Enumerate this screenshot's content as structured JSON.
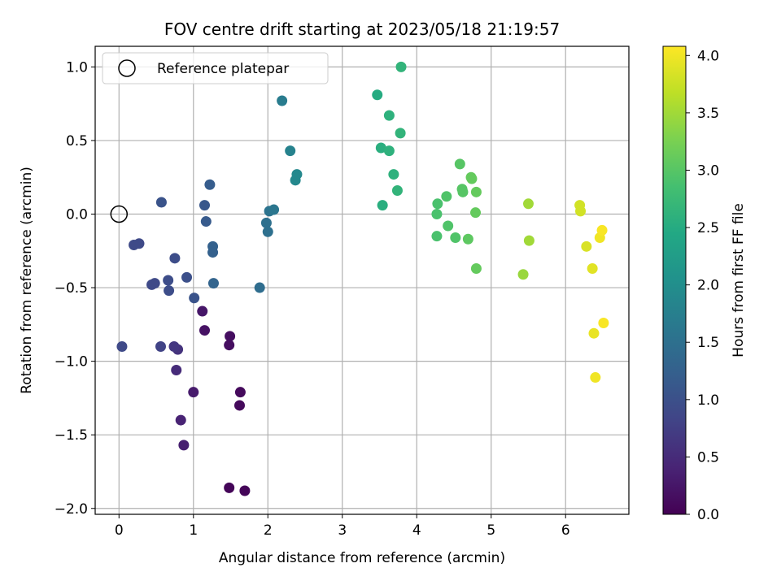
{
  "chart_data": {
    "type": "scatter",
    "title": "FOV centre drift starting at 2023/05/18 21:19:57",
    "xlabel": "Angular distance from reference (arcmin)",
    "ylabel": "Rotation from reference (arcmin)",
    "xlim": [
      -0.32,
      6.85
    ],
    "ylim": [
      -2.04,
      1.14
    ],
    "xticks": [
      0,
      1,
      2,
      3,
      4,
      5,
      6
    ],
    "xtick_labels": [
      "0",
      "1",
      "2",
      "3",
      "4",
      "5",
      "6"
    ],
    "yticks": [
      1.0,
      0.5,
      0.0,
      -0.5,
      -1.0,
      -1.5,
      -2.0
    ],
    "ytick_labels": [
      "1.0",
      "0.5",
      "0.0",
      "−0.5",
      "−1.0",
      "−1.5",
      "−2.0"
    ],
    "grid": true,
    "legend": {
      "position": "top-left",
      "entries": [
        "Reference platepar"
      ]
    },
    "reference_point": {
      "x": 0.0,
      "y": 0.0
    },
    "colorbar": {
      "label": "Hours from first FF file",
      "range": [
        0.0,
        4.08
      ],
      "ticks": [
        0.0,
        0.5,
        1.0,
        1.5,
        2.0,
        2.5,
        3.0,
        3.5,
        4.0
      ],
      "tick_labels": [
        "0.0",
        "0.5",
        "1.0",
        "1.5",
        "2.0",
        "2.5",
        "3.0",
        "3.5",
        "4.0"
      ],
      "colormap": "viridis"
    },
    "points": [
      {
        "x": 1.48,
        "y": -1.86,
        "c": 0.05
      },
      {
        "x": 1.69,
        "y": -1.88,
        "c": 0.05
      },
      {
        "x": 1.62,
        "y": -1.3,
        "c": 0.1
      },
      {
        "x": 1.63,
        "y": -1.21,
        "c": 0.1
      },
      {
        "x": 1.48,
        "y": -0.89,
        "c": 0.15
      },
      {
        "x": 1.49,
        "y": -0.83,
        "c": 0.15
      },
      {
        "x": 1.15,
        "y": -0.79,
        "c": 0.2
      },
      {
        "x": 1.12,
        "y": -0.66,
        "c": 0.25
      },
      {
        "x": 1.0,
        "y": -1.21,
        "c": 0.3
      },
      {
        "x": 0.87,
        "y": -1.57,
        "c": 0.35
      },
      {
        "x": 0.83,
        "y": -1.4,
        "c": 0.4
      },
      {
        "x": 0.77,
        "y": -1.06,
        "c": 0.5
      },
      {
        "x": 0.79,
        "y": -0.92,
        "c": 0.6
      },
      {
        "x": 0.74,
        "y": -0.9,
        "c": 0.65
      },
      {
        "x": 0.56,
        "y": -0.9,
        "c": 0.8
      },
      {
        "x": 0.04,
        "y": -0.9,
        "c": 0.9
      },
      {
        "x": 0.2,
        "y": -0.21,
        "c": 0.9
      },
      {
        "x": 0.27,
        "y": -0.2,
        "c": 0.9
      },
      {
        "x": 0.44,
        "y": -0.48,
        "c": 0.9
      },
      {
        "x": 0.48,
        "y": -0.47,
        "c": 0.9
      },
      {
        "x": 0.66,
        "y": -0.45,
        "c": 0.95
      },
      {
        "x": 0.67,
        "y": -0.52,
        "c": 0.95
      },
      {
        "x": 0.75,
        "y": -0.3,
        "c": 0.95
      },
      {
        "x": 0.91,
        "y": -0.43,
        "c": 1.0
      },
      {
        "x": 1.01,
        "y": -0.57,
        "c": 1.05
      },
      {
        "x": 0.57,
        "y": 0.08,
        "c": 1.05
      },
      {
        "x": 1.15,
        "y": 0.06,
        "c": 1.1
      },
      {
        "x": 1.17,
        "y": -0.05,
        "c": 1.15
      },
      {
        "x": 1.22,
        "y": 0.2,
        "c": 1.2
      },
      {
        "x": 1.26,
        "y": -0.22,
        "c": 1.25
      },
      {
        "x": 1.26,
        "y": -0.26,
        "c": 1.25
      },
      {
        "x": 1.27,
        "y": -0.47,
        "c": 1.3
      },
      {
        "x": 1.89,
        "y": -0.5,
        "c": 1.45
      },
      {
        "x": 1.98,
        "y": -0.06,
        "c": 1.5
      },
      {
        "x": 2.0,
        "y": -0.12,
        "c": 1.5
      },
      {
        "x": 2.02,
        "y": 0.02,
        "c": 1.55
      },
      {
        "x": 2.08,
        "y": 0.03,
        "c": 1.6
      },
      {
        "x": 2.19,
        "y": 0.77,
        "c": 1.7
      },
      {
        "x": 2.3,
        "y": 0.43,
        "c": 1.8
      },
      {
        "x": 2.37,
        "y": 0.23,
        "c": 1.9
      },
      {
        "x": 2.39,
        "y": 0.27,
        "c": 1.9
      },
      {
        "x": 3.47,
        "y": 0.81,
        "c": 2.5
      },
      {
        "x": 3.52,
        "y": 0.45,
        "c": 2.55
      },
      {
        "x": 3.54,
        "y": 0.06,
        "c": 2.55
      },
      {
        "x": 3.63,
        "y": 0.67,
        "c": 2.6
      },
      {
        "x": 3.63,
        "y": 0.43,
        "c": 2.6
      },
      {
        "x": 3.69,
        "y": 0.27,
        "c": 2.6
      },
      {
        "x": 3.74,
        "y": 0.16,
        "c": 2.65
      },
      {
        "x": 3.78,
        "y": 0.55,
        "c": 2.65
      },
      {
        "x": 3.79,
        "y": 1.0,
        "c": 2.65
      },
      {
        "x": 4.27,
        "y": -0.15,
        "c": 2.9
      },
      {
        "x": 4.27,
        "y": 0.0,
        "c": 2.9
      },
      {
        "x": 4.28,
        "y": 0.07,
        "c": 2.9
      },
      {
        "x": 4.4,
        "y": 0.12,
        "c": 2.95
      },
      {
        "x": 4.42,
        "y": -0.08,
        "c": 2.95
      },
      {
        "x": 4.52,
        "y": -0.16,
        "c": 2.95
      },
      {
        "x": 4.58,
        "y": 0.34,
        "c": 3.0
      },
      {
        "x": 4.61,
        "y": 0.17,
        "c": 3.0
      },
      {
        "x": 4.62,
        "y": 0.15,
        "c": 3.0
      },
      {
        "x": 4.69,
        "y": -0.17,
        "c": 3.05
      },
      {
        "x": 4.73,
        "y": 0.25,
        "c": 3.1
      },
      {
        "x": 4.74,
        "y": 0.24,
        "c": 3.1
      },
      {
        "x": 4.79,
        "y": 0.01,
        "c": 3.1
      },
      {
        "x": 4.8,
        "y": -0.37,
        "c": 3.1
      },
      {
        "x": 4.8,
        "y": 0.15,
        "c": 3.1
      },
      {
        "x": 5.43,
        "y": -0.41,
        "c": 3.45
      },
      {
        "x": 5.5,
        "y": 0.07,
        "c": 3.5
      },
      {
        "x": 5.51,
        "y": -0.18,
        "c": 3.5
      },
      {
        "x": 6.19,
        "y": 0.06,
        "c": 3.8
      },
      {
        "x": 6.2,
        "y": 0.02,
        "c": 3.8
      },
      {
        "x": 6.28,
        "y": -0.22,
        "c": 3.85
      },
      {
        "x": 6.36,
        "y": -0.37,
        "c": 3.9
      },
      {
        "x": 6.38,
        "y": -0.81,
        "c": 3.95
      },
      {
        "x": 6.4,
        "y": -1.11,
        "c": 4.0
      },
      {
        "x": 6.46,
        "y": -0.16,
        "c": 4.0
      },
      {
        "x": 6.49,
        "y": -0.11,
        "c": 4.05
      },
      {
        "x": 6.51,
        "y": -0.74,
        "c": 4.05
      }
    ]
  }
}
